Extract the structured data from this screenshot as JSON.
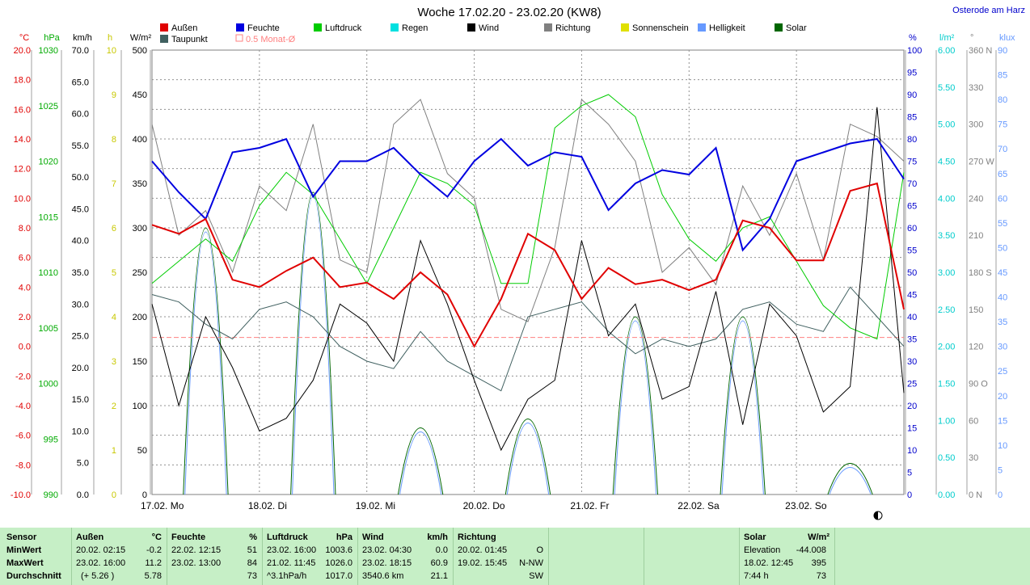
{
  "header": {
    "title": "Woche 17.02.20 - 23.02.20 (KW8)",
    "location": "Osterode am Harz"
  },
  "legend": [
    {
      "label": "Außen",
      "color": "#e00000"
    },
    {
      "label": "Feuchte",
      "color": "#0000e0"
    },
    {
      "label": "Luftdruck",
      "color": "#00cc00"
    },
    {
      "label": "Regen",
      "color": "#00e0e0"
    },
    {
      "label": "Wind",
      "color": "#000000"
    },
    {
      "label": "Richtung",
      "color": "#808080"
    },
    {
      "label": "Sonnenschein",
      "color": "#e0e000"
    },
    {
      "label": "Helligkeit",
      "color": "#6699ff"
    },
    {
      "label": "Solar",
      "color": "#006600"
    },
    {
      "label": "Taupunkt",
      "color": "#406060"
    },
    {
      "label": "0.5 Monat-Ø",
      "color": "#ff8080"
    }
  ],
  "axes_left": [
    {
      "unit": "°C",
      "color": "#e00000",
      "ticks": [
        "20.0",
        "18.0",
        "16.0",
        "14.0",
        "12.0",
        "10.0",
        "8.0",
        "6.0",
        "4.0",
        "2.0",
        "0.0",
        "-2.0",
        "-4.0",
        "-6.0",
        "-8.0",
        "-10.0"
      ]
    },
    {
      "unit": "hPa",
      "color": "#00aa00",
      "ticks": [
        "1030",
        "1025",
        "1020",
        "1015",
        "1010",
        "1005",
        "1000",
        "995",
        "990"
      ]
    },
    {
      "unit": "km/h",
      "color": "#000000",
      "ticks": [
        "70.0",
        "65.0",
        "60.0",
        "55.0",
        "50.0",
        "45.0",
        "40.0",
        "35.0",
        "30.0",
        "25.0",
        "20.0",
        "15.0",
        "10.0",
        "5.0",
        "0.0"
      ]
    },
    {
      "unit": "h",
      "color": "#c8c800",
      "ticks": [
        "10",
        "9",
        "8",
        "7",
        "6",
        "5",
        "4",
        "3",
        "2",
        "1",
        "0"
      ]
    },
    {
      "unit": "W/m²",
      "color": "#000000",
      "ticks": [
        "500",
        "450",
        "400",
        "350",
        "300",
        "250",
        "200",
        "150",
        "100",
        "50",
        "0"
      ]
    }
  ],
  "axes_right": [
    {
      "unit": "%",
      "color": "#0000cc",
      "ticks": [
        "100",
        "95",
        "90",
        "85",
        "80",
        "75",
        "70",
        "65",
        "60",
        "55",
        "50",
        "45",
        "40",
        "35",
        "30",
        "25",
        "20",
        "15",
        "10",
        "5",
        "0"
      ]
    },
    {
      "unit": "l/m²",
      "color": "#00cccc",
      "ticks": [
        "6.00",
        "5.50",
        "5.00",
        "4.50",
        "4.00",
        "3.50",
        "3.00",
        "2.50",
        "2.00",
        "1.50",
        "1.00",
        "0.50",
        "0.00"
      ]
    },
    {
      "unit": "°",
      "color": "#808080",
      "ticks": [
        "360 N",
        "330",
        "300",
        "270 W",
        "240",
        "210",
        "180 S",
        "150",
        "120",
        "90 O",
        "60",
        "30",
        "0 N"
      ]
    },
    {
      "unit": "klux",
      "color": "#6699ff",
      "ticks": [
        "90",
        "85",
        "80",
        "75",
        "70",
        "65",
        "60",
        "55",
        "50",
        "45",
        "40",
        "35",
        "30",
        "25",
        "20",
        "15",
        "10",
        "5",
        "0"
      ]
    }
  ],
  "x_axis": {
    "labels": [
      "17.02.  Mo",
      "18.02.  Di",
      "19.02.  Mi",
      "20.02.  Do",
      "21.02.  Fr",
      "22.02.  Sa",
      "23.02.  So"
    ]
  },
  "chart_data": {
    "type": "line",
    "title": "Woche 17.02.20 - 23.02.20 (KW8)",
    "x": [
      0,
      6,
      12,
      18,
      24,
      30,
      36,
      42,
      48,
      54,
      60,
      66,
      72,
      78,
      84,
      90,
      96,
      102,
      108,
      114,
      120,
      126,
      132,
      138,
      144,
      150,
      156,
      162,
      168
    ],
    "x_unit": "Stunden ab 17.02. 00:00",
    "series": [
      {
        "name": "Außen",
        "unit": "°C",
        "values": [
          8.2,
          7.6,
          8.6,
          4.5,
          4.0,
          5.1,
          6.0,
          4.0,
          4.3,
          3.2,
          5.0,
          3.5,
          0.0,
          3.2,
          7.6,
          6.5,
          3.2,
          5.3,
          4.2,
          4.5,
          3.8,
          4.5,
          8.5,
          8.0,
          5.8,
          5.8,
          10.5,
          11.0,
          2.5
        ]
      },
      {
        "name": "Feuchte",
        "unit": "%",
        "values": [
          75,
          68,
          62,
          77,
          78,
          80,
          67,
          75,
          75,
          78,
          72,
          67,
          75,
          80,
          74,
          77,
          76,
          64,
          70,
          73,
          72,
          78,
          55,
          62,
          75,
          77,
          79,
          80,
          71
        ]
      },
      {
        "name": "Luftdruck",
        "unit": "hPa",
        "values": [
          1009,
          1011,
          1013,
          1011,
          1016,
          1019,
          1017,
          1013,
          1009,
          1014,
          1019,
          1018,
          1016,
          1009,
          1009,
          1023,
          1025,
          1026,
          1024,
          1017,
          1013,
          1011,
          1014,
          1015,
          1011,
          1007,
          1005,
          1004,
          1019
        ]
      },
      {
        "name": "Wind",
        "unit": "km/h",
        "values": [
          30,
          14,
          28,
          20,
          10,
          12,
          18,
          30,
          27,
          21,
          40,
          30,
          18,
          7,
          15,
          18,
          40,
          25,
          30,
          15,
          17,
          32,
          11,
          30,
          25,
          13,
          17,
          61,
          16
        ]
      },
      {
        "name": "Richtung",
        "unit": "°",
        "values": [
          300,
          210,
          230,
          180,
          250,
          230,
          300,
          190,
          180,
          300,
          320,
          260,
          240,
          150,
          140,
          200,
          320,
          300,
          270,
          180,
          200,
          170,
          250,
          210,
          260,
          190,
          300,
          290,
          270
        ]
      },
      {
        "name": "Taupunkt",
        "unit": "°C",
        "values": [
          3.5,
          3.0,
          1.5,
          0.5,
          2.5,
          3.0,
          2.0,
          0.0,
          -1.0,
          -1.5,
          1.0,
          -1.0,
          -2.0,
          -3.0,
          2.0,
          2.5,
          3.0,
          1.0,
          -0.5,
          0.5,
          0.0,
          0.5,
          2.5,
          3.0,
          1.5,
          1.0,
          4.0,
          2.0,
          0.0
        ]
      }
    ],
    "solar_peaks": [
      {
        "x": 12,
        "value": 300
      },
      {
        "x": 36,
        "value": 340
      },
      {
        "x": 60,
        "value": 75
      },
      {
        "x": 84,
        "value": 85
      },
      {
        "x": 108,
        "value": 200
      },
      {
        "x": 132,
        "value": 200
      },
      {
        "x": 156,
        "value": 35
      }
    ],
    "monat_avg_c": 0.6,
    "ylim_temp": [
      -10,
      20
    ],
    "ylim_feuchte": [
      0,
      100
    ],
    "ylim_druck": [
      990,
      1030
    ],
    "ylim_wind": [
      0,
      70
    ],
    "ylim_solar": [
      0,
      500
    ]
  },
  "footer": {
    "headers": [
      {
        "name": "Sensor",
        "unit": ""
      },
      {
        "name": "Außen",
        "unit": "°C"
      },
      {
        "name": "Feuchte",
        "unit": "%"
      },
      {
        "name": "Luftdruck",
        "unit": "hPa"
      },
      {
        "name": "Wind",
        "unit": "km/h"
      },
      {
        "name": "Richtung",
        "unit": ""
      },
      {
        "name": "Solar",
        "unit": "W/m²"
      }
    ],
    "rows": [
      {
        "label": "MinWert",
        "aussen": [
          "20.02.  02:15",
          "-0.2"
        ],
        "feuchte": [
          "22.02.  12:15",
          "51"
        ],
        "druck": [
          "23.02.  16:00",
          "1003.6"
        ],
        "wind": [
          "23.02.  04:30",
          "0.0"
        ],
        "richtung": [
          "20.02.  01:45",
          "O"
        ],
        "solar": [
          "Elevation",
          "-44.008"
        ]
      },
      {
        "label": "MaxWert",
        "aussen": [
          "23.02.  16:00",
          "11.2"
        ],
        "feuchte": [
          "23.02.  13:00",
          "84"
        ],
        "druck": [
          "21.02.  11:45",
          "1026.0"
        ],
        "wind": [
          "23.02.  18:15",
          "60.9"
        ],
        "richtung": [
          "19.02.  15:45",
          "N-NW"
        ],
        "solar": [
          "18.02.  12:45",
          "395"
        ]
      },
      {
        "label": "Durchschnitt",
        "aussen": [
          "(+ 5.26 )",
          "5.78"
        ],
        "feuchte": [
          "",
          "73"
        ],
        "druck": [
          "^3.1hPa/h",
          "1017.0"
        ],
        "wind": [
          "3540.6 km",
          "21.1"
        ],
        "richtung": [
          "",
          "SW"
        ],
        "solar": [
          "7:44 h",
          "73"
        ]
      }
    ]
  }
}
